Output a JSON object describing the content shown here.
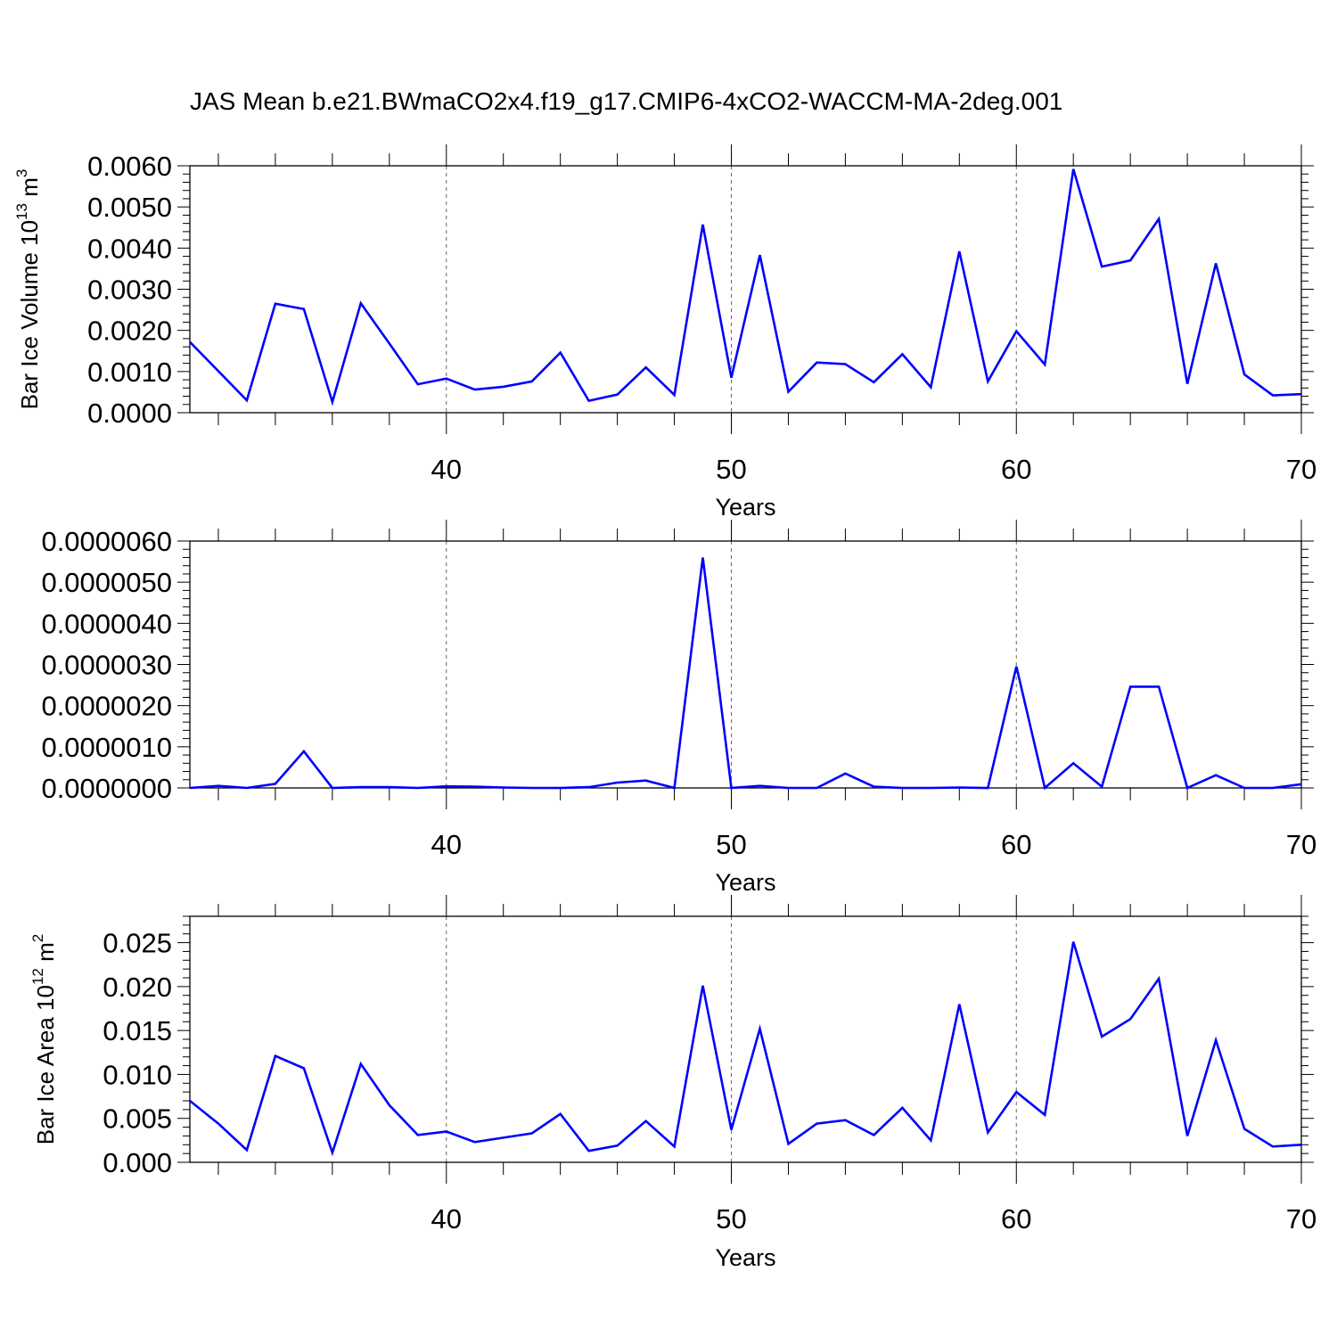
{
  "title": "JAS Mean b.e21.BWmaCO2x4.f19_g17.CMIP6-4xCO2-WACCM-MA-2deg.001",
  "chart_data": [
    {
      "type": "line",
      "ylabel": {
        "main": "Bar Ice Volume 10",
        "sup": "13",
        "unit": " m",
        "unit_sup": "3"
      },
      "xlabel": "Years",
      "xlim": [
        31,
        70
      ],
      "ylim": [
        0,
        0.006
      ],
      "xticks": [
        40,
        50,
        60,
        70
      ],
      "xtick_labels": [
        "40",
        "50",
        "60",
        "70"
      ],
      "yticks": [
        0,
        0.001,
        0.002,
        0.003,
        0.004,
        0.005,
        0.006
      ],
      "ytick_labels": [
        "0.0000",
        "0.0010",
        "0.0020",
        "0.0030",
        "0.0040",
        "0.0050",
        "0.0060"
      ],
      "grid": "x-dashed",
      "series": [
        {
          "color": "#0000ff",
          "x": [
            31,
            32,
            33,
            34,
            35,
            36,
            37,
            38,
            39,
            40,
            41,
            42,
            43,
            44,
            45,
            46,
            47,
            48,
            49,
            50,
            51,
            52,
            53,
            54,
            55,
            56,
            57,
            58,
            59,
            60,
            61,
            62,
            63,
            64,
            65,
            66,
            67,
            68,
            69,
            70
          ],
          "y": [
            0.00172,
            0.00101,
            0.0003,
            0.00265,
            0.00252,
            0.00026,
            0.00266,
            0.00168,
            0.00069,
            0.00083,
            0.00056,
            0.00063,
            0.00076,
            0.00146,
            0.00029,
            0.00044,
            0.0011,
            0.00043,
            0.00457,
            0.00085,
            0.00383,
            0.00051,
            0.00122,
            0.00118,
            0.00074,
            0.00142,
            0.00062,
            0.00392,
            0.00076,
            0.00198,
            0.00117,
            0.00592,
            0.00355,
            0.0037,
            0.00471,
            0.0007,
            0.00363,
            0.00093,
            0.00042,
            0.00045
          ]
        }
      ]
    },
    {
      "type": "line",
      "xlabel": "Years",
      "xlim": [
        31,
        70
      ],
      "ylim": [
        0,
        6e-06
      ],
      "xticks": [
        40,
        50,
        60,
        70
      ],
      "xtick_labels": [
        "40",
        "50",
        "60",
        "70"
      ],
      "yticks": [
        0,
        1e-06,
        2e-06,
        3e-06,
        4e-06,
        5e-06,
        6e-06
      ],
      "ytick_labels": [
        "0.0000000",
        "0.0000010",
        "0.0000020",
        "0.0000030",
        "0.0000040",
        "0.0000050",
        "0.0000060"
      ],
      "grid": "x-dashed",
      "series": [
        {
          "color": "#0000ff",
          "x": [
            31,
            32,
            33,
            34,
            35,
            36,
            37,
            38,
            39,
            40,
            41,
            42,
            43,
            44,
            45,
            46,
            47,
            48,
            49,
            50,
            51,
            52,
            53,
            54,
            55,
            56,
            57,
            58,
            59,
            60,
            61,
            62,
            63,
            64,
            65,
            66,
            67,
            68,
            69,
            70
          ],
          "y": [
            0.0,
            5e-08,
            0.0,
            1e-07,
            8.9e-07,
            0.0,
            2e-08,
            2e-08,
            0.0,
            4e-08,
            3e-08,
            1e-08,
            0.0,
            0.0,
            2e-08,
            1.3e-07,
            1.8e-07,
            0.0,
            5.6e-06,
            0.0,
            5e-08,
            0.0,
            0.0,
            3.5e-07,
            3e-08,
            0.0,
            0.0,
            1e-08,
            0.0,
            2.95e-06,
            0.0,
            6e-07,
            3e-08,
            2.46e-06,
            2.46e-06,
            0.0,
            3.1e-07,
            0.0,
            0.0,
            9e-08
          ]
        }
      ]
    },
    {
      "type": "line",
      "ylabel": {
        "main": "Bar Ice Area 10",
        "sup": "12",
        "unit": " m",
        "unit_sup": "2"
      },
      "xlabel": "Years",
      "xlim": [
        31,
        70
      ],
      "ylim": [
        0,
        0.028
      ],
      "xticks": [
        40,
        50,
        60,
        70
      ],
      "xtick_labels": [
        "40",
        "50",
        "60",
        "70"
      ],
      "yticks": [
        0,
        0.005,
        0.01,
        0.015,
        0.02,
        0.025
      ],
      "ytick_labels": [
        "0.000",
        "0.005",
        "0.010",
        "0.015",
        "0.020",
        "0.025"
      ],
      "grid": "x-dashed",
      "series": [
        {
          "color": "#0000ff",
          "x": [
            31,
            32,
            33,
            34,
            35,
            36,
            37,
            38,
            39,
            40,
            41,
            42,
            43,
            44,
            45,
            46,
            47,
            48,
            49,
            50,
            51,
            52,
            53,
            54,
            55,
            56,
            57,
            58,
            59,
            60,
            61,
            62,
            63,
            64,
            65,
            66,
            67,
            68,
            69,
            70
          ],
          "y": [
            0.007,
            0.0044,
            0.0014,
            0.0121,
            0.0107,
            0.0011,
            0.0112,
            0.0065,
            0.0031,
            0.0035,
            0.0023,
            0.0028,
            0.0033,
            0.0055,
            0.0013,
            0.0019,
            0.0047,
            0.0018,
            0.0201,
            0.0037,
            0.0152,
            0.0021,
            0.0044,
            0.0048,
            0.0031,
            0.0062,
            0.0025,
            0.018,
            0.0034,
            0.008,
            0.0054,
            0.0251,
            0.0143,
            0.0163,
            0.0209,
            0.003,
            0.0139,
            0.0038,
            0.0018,
            0.002
          ]
        }
      ]
    }
  ]
}
